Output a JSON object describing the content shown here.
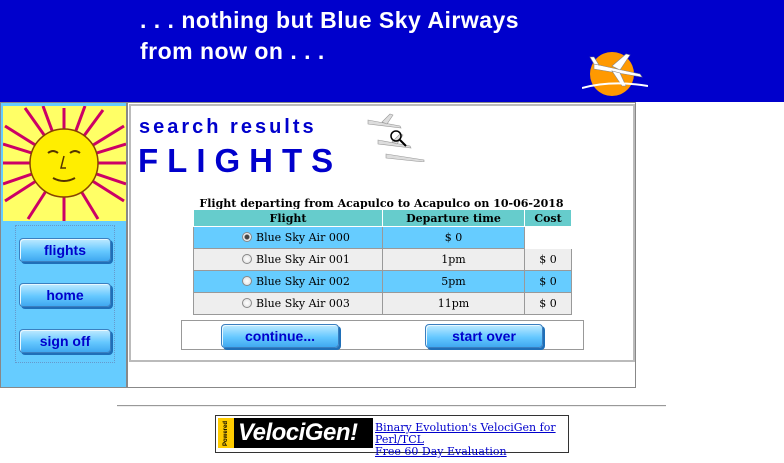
{
  "header": {
    "tagline_line1": ". . . nothing but Blue Sky Airways",
    "tagline_line2": "from now on . . .",
    "bg_color": "#0000cc"
  },
  "sidebar": {
    "nav": [
      {
        "label": "flights"
      },
      {
        "label": "home"
      },
      {
        "label": "sign off"
      }
    ],
    "bg_color": "#66ccff"
  },
  "main": {
    "section_title": "search results",
    "page_title": "FLIGHTS",
    "flight_caption": "Flight departing from Acapulco to Acapulco on 10-06-2018",
    "table": {
      "headers": [
        "Flight",
        "Departure time",
        "Cost"
      ],
      "rows": [
        {
          "flight": "Blue Sky Air 000",
          "departure": "$ 0",
          "cost": "",
          "selected": true
        },
        {
          "flight": "Blue Sky Air 001",
          "departure": "1pm",
          "cost": "$ 0",
          "selected": false
        },
        {
          "flight": "Blue Sky Air 002",
          "departure": "5pm",
          "cost": "$ 0",
          "selected": false
        },
        {
          "flight": "Blue Sky Air 003",
          "departure": "11pm",
          "cost": "$ 0",
          "selected": false
        }
      ]
    },
    "buttons": {
      "continue": "continue...",
      "start_over": "start over"
    }
  },
  "footer": {
    "ad_powered": "Powered By",
    "ad_brand": "VelociGen!",
    "ad_link1": "Binary Evolution's VelociGen for Perl/TCL",
    "ad_link2": "Free 60 Day Evaluation"
  }
}
